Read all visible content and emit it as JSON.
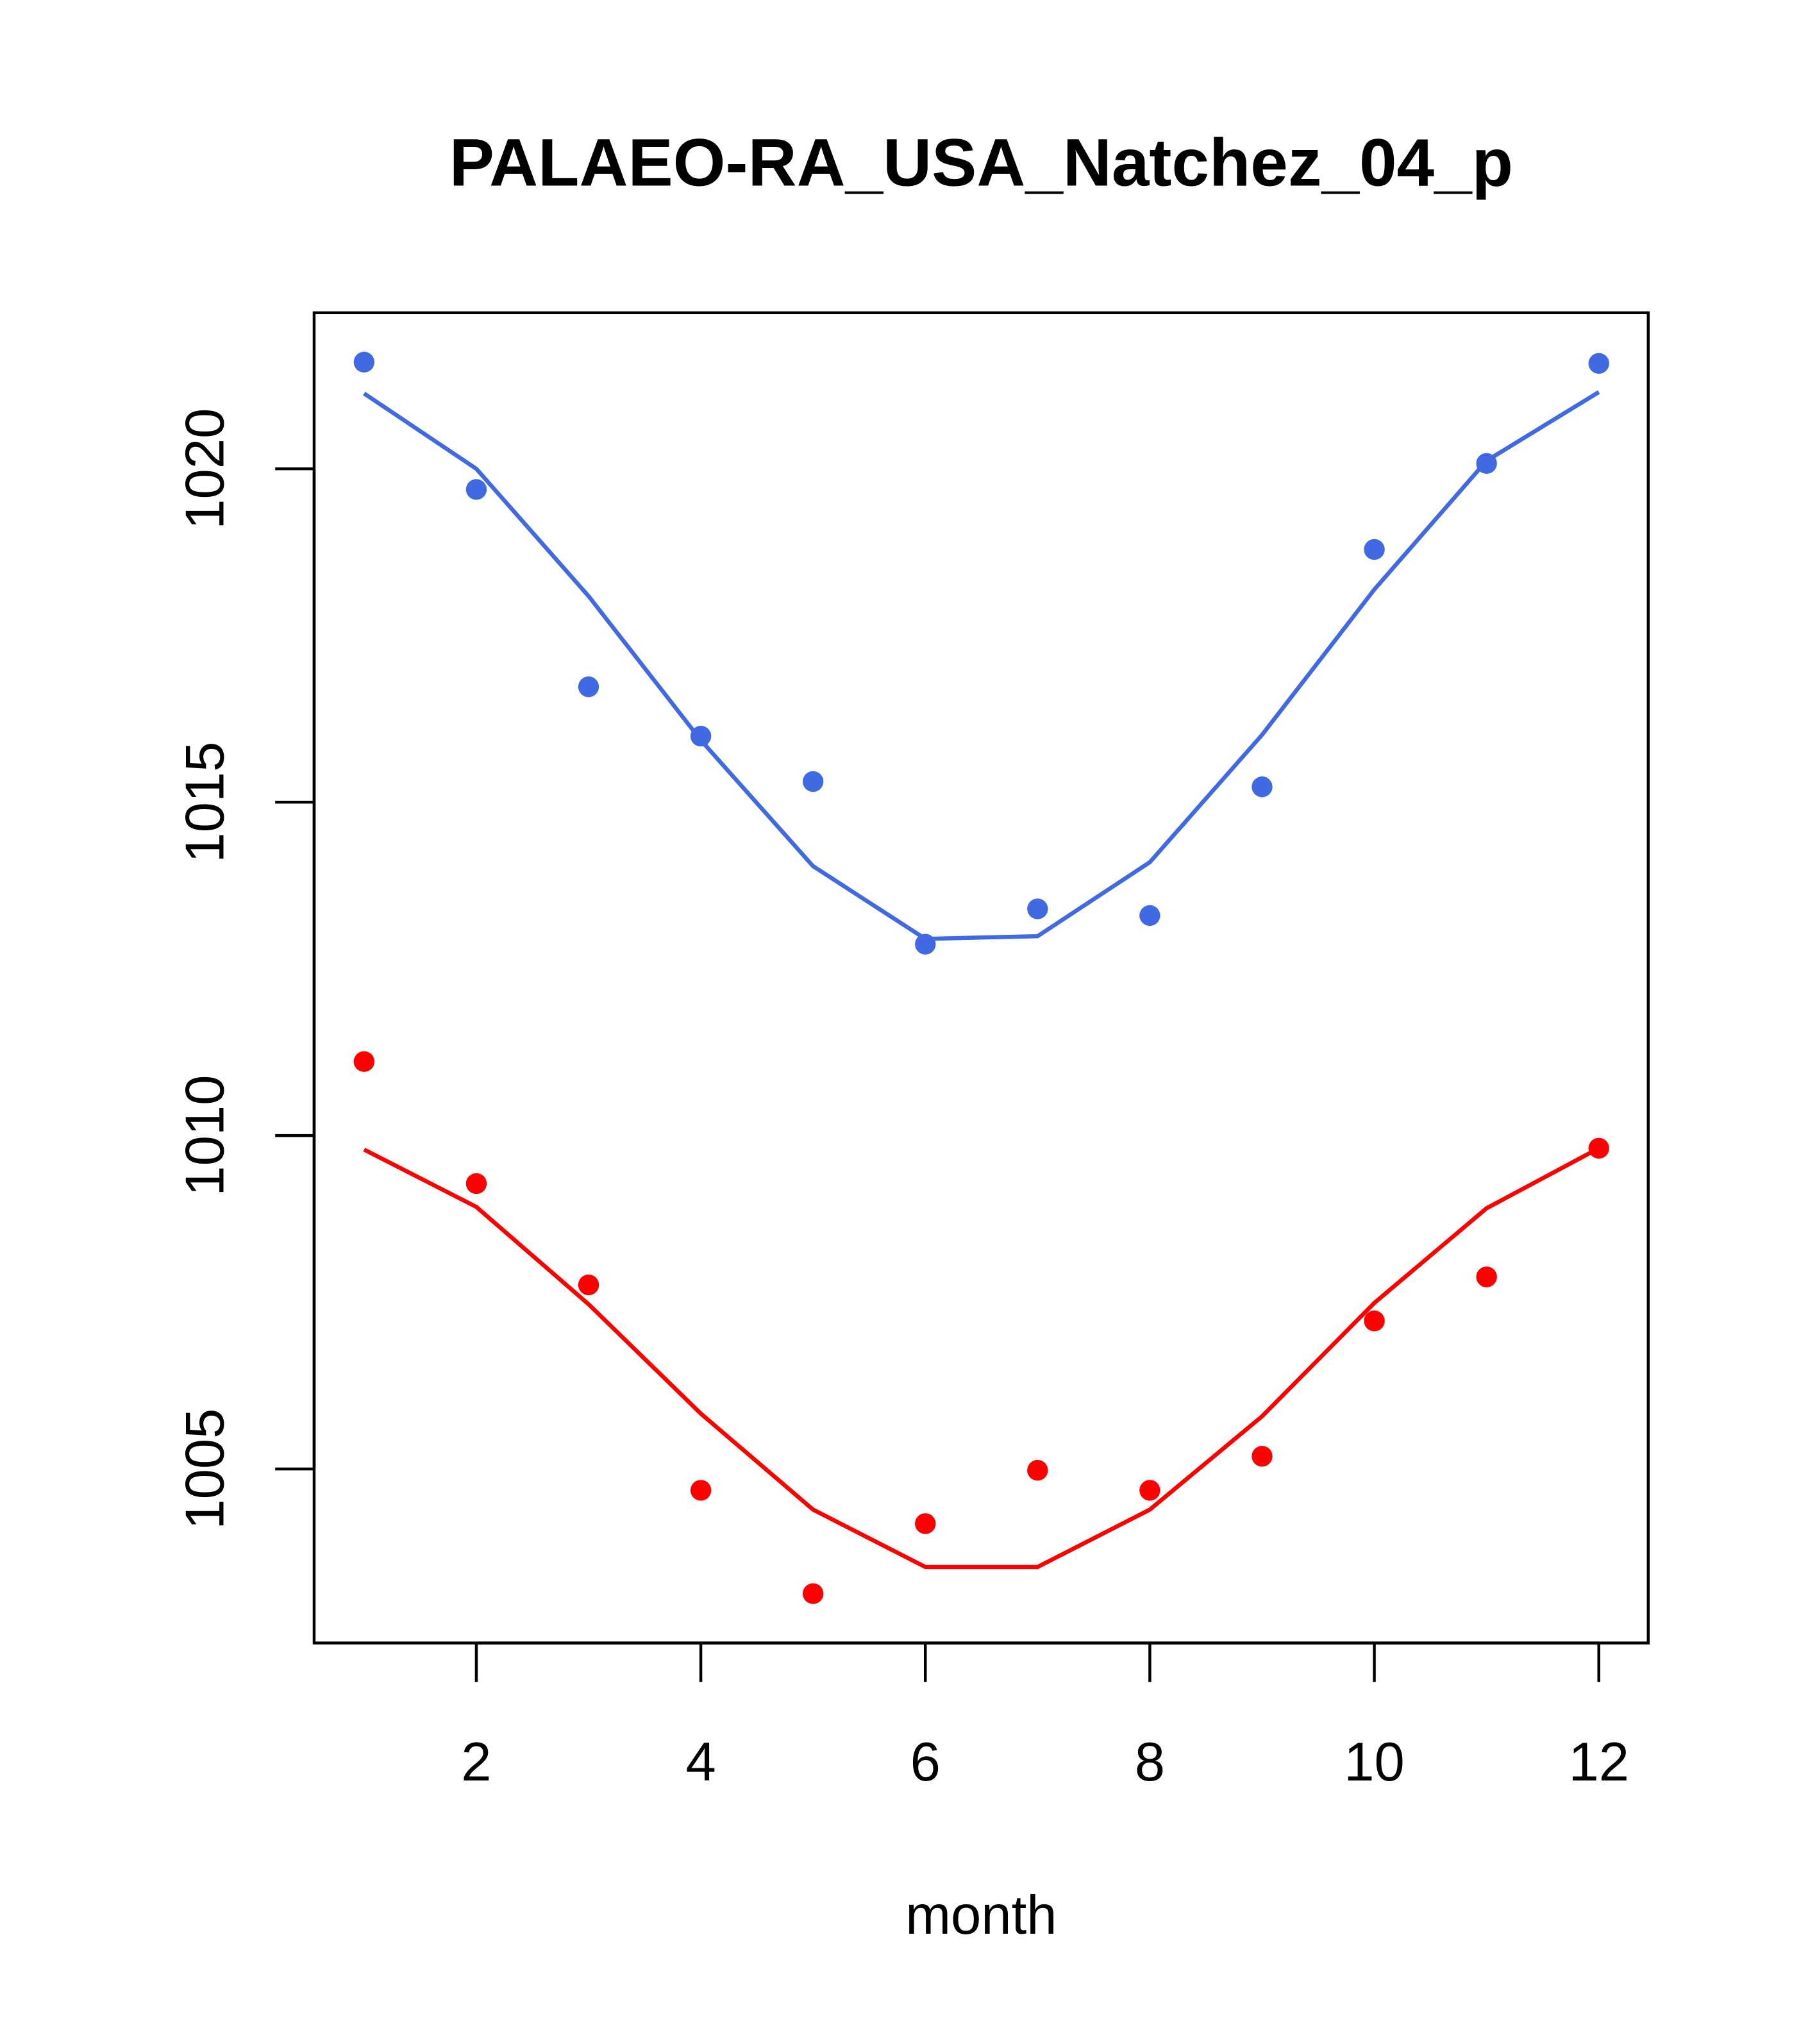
{
  "chart_data": {
    "type": "line",
    "title": "PALAEO-RA_USA_Natchez_04_p",
    "xlabel": "month",
    "ylabel": "",
    "xlim": [
      0.555,
      12.44
    ],
    "ylim": [
      1002.39,
      1022.34
    ],
    "xticks": [
      2,
      4,
      6,
      8,
      10,
      12
    ],
    "yticks": [
      1005,
      1010,
      1015,
      1020
    ],
    "x": [
      1,
      2,
      3,
      4,
      5,
      6,
      7,
      8,
      9,
      10,
      11,
      12
    ],
    "series": [
      {
        "name": "blue points",
        "kind": "points",
        "color": "#4169E1",
        "values": [
          1021.6,
          1019.69,
          1016.73,
          1015.99,
          1015.31,
          1012.87,
          1013.4,
          1013.3,
          1015.23,
          1018.79,
          1020.08,
          1021.58
        ]
      },
      {
        "name": "blue line",
        "kind": "line",
        "color": "#4169E1",
        "values": [
          1021.13,
          1020.0,
          1018.09,
          1015.93,
          1014.04,
          1012.95,
          1012.99,
          1014.1,
          1016.01,
          1018.19,
          1020.12,
          1021.15
        ]
      },
      {
        "name": "red points",
        "kind": "points",
        "color": "#FF0000",
        "values": [
          1011.11,
          1009.28,
          1007.76,
          1004.68,
          1003.13,
          1004.18,
          1004.98,
          1004.68,
          1005.19,
          1007.22,
          1007.88,
          1009.81
        ]
      },
      {
        "name": "red line",
        "kind": "line",
        "color": "#FF0000",
        "values": [
          1009.79,
          1008.93,
          1007.47,
          1005.83,
          1004.39,
          1003.53,
          1003.53,
          1004.39,
          1005.79,
          1007.49,
          1008.91,
          1009.81
        ]
      }
    ]
  }
}
